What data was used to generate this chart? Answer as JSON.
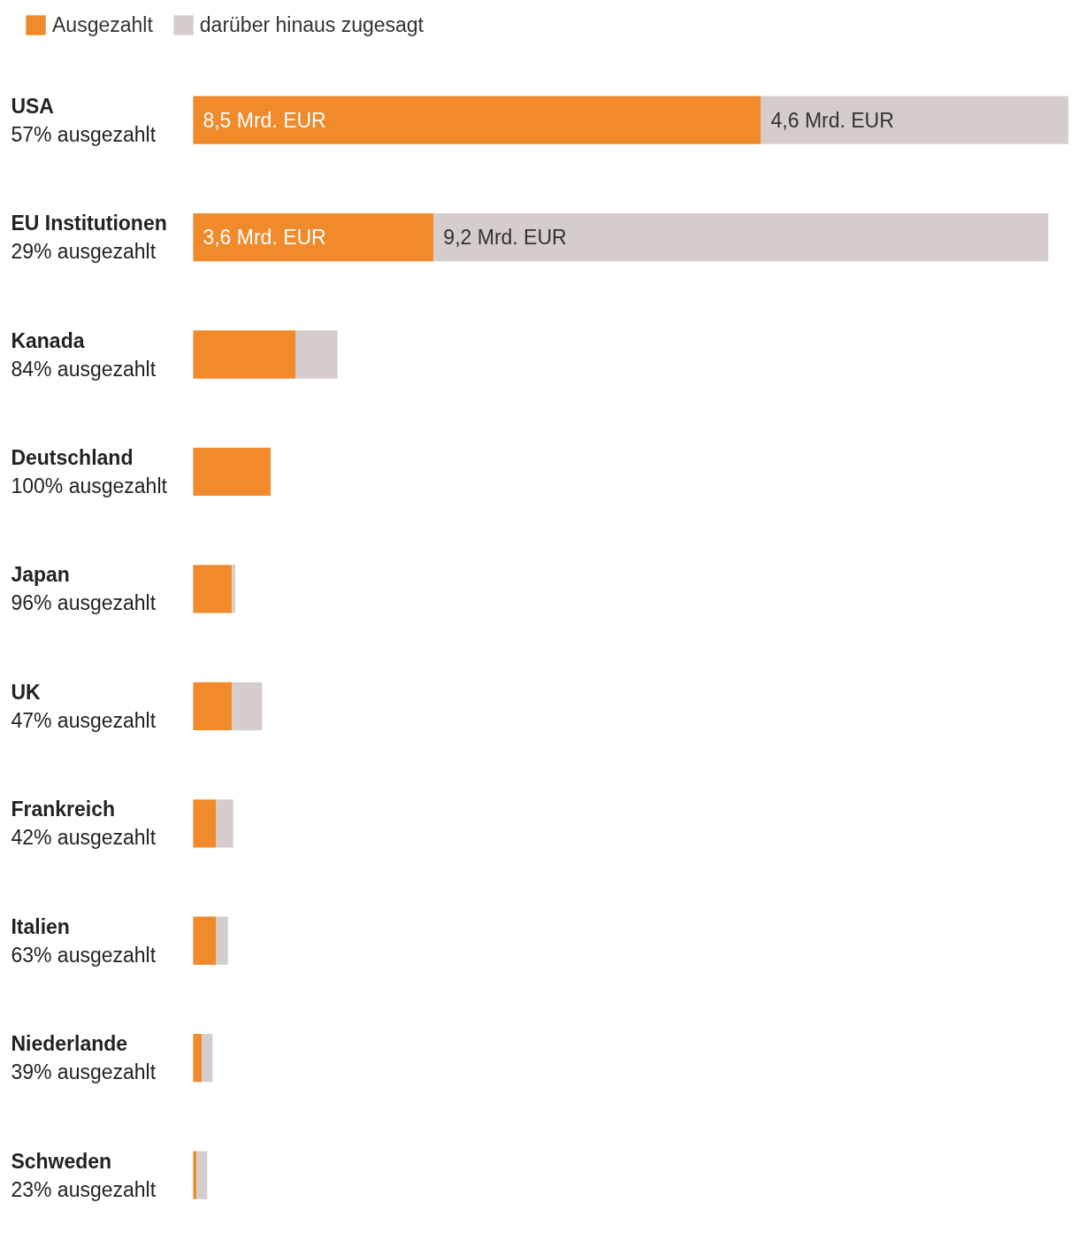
{
  "chart_data": {
    "type": "bar",
    "orientation": "horizontal",
    "stacked": true,
    "categories": [
      "USA\n57% ausgezahlt",
      "EU Institutionen\n29% ausgezahlt",
      "Kanada\n84% ausgezahlt",
      "Deutschland\n100% ausgezahlt",
      "Japan\n96% ausgezahlt",
      "UK\n47% ausgezahlt",
      "Frankreich\n42% ausgezahlt",
      "Italien\n63% ausgezahlt",
      "Niederlande\n39% ausgezahlt",
      "Schweden\n23% ausgezahlt"
    ],
    "series": [
      {
        "name": "Ausgezahlt",
        "color": "#f08a2b",
        "values": [
          8.5,
          3.6,
          1.53,
          1.16,
          0.58,
          0.58,
          0.34,
          0.34,
          0.13,
          0.05
        ],
        "value_labels": [
          "8,5 Mrd. EUR",
          "3,6 Mrd. EUR",
          null,
          null,
          null,
          null,
          null,
          null,
          null,
          null
        ]
      },
      {
        "name": "darüber hinaus zugesagt",
        "color": "#d5cdcc",
        "values": [
          4.6,
          9.2,
          0.63,
          0,
          0.05,
          0.45,
          0.26,
          0.18,
          0.16,
          0.16
        ],
        "value_labels": [
          "4,6 Mrd. EUR",
          "9,2 Mrd. EUR",
          null,
          null,
          null,
          null,
          null,
          null,
          null,
          null
        ]
      }
    ],
    "legend": "top left",
    "grid": false
  }
}
